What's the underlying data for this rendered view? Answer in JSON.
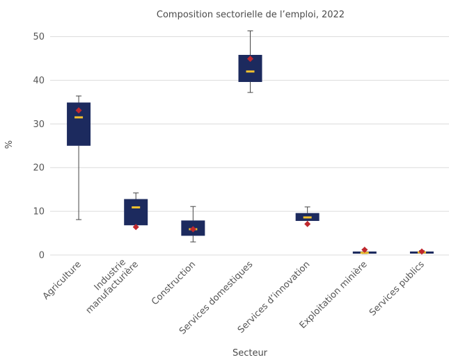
{
  "chart_data": {
    "type": "box",
    "title": "Composition sectorielle de l’emploi, 2022",
    "xlabel": "Secteur",
    "ylabel": "%",
    "ylim": [
      0,
      52
    ],
    "yticks": [
      0,
      10,
      20,
      30,
      40,
      50
    ],
    "grid": true,
    "colors": {
      "box": "#1c2a5e",
      "median": "#f2c12e",
      "mean": "#c0282d",
      "whisker": "#444444",
      "grid": "#dcdcdc"
    },
    "categories": [
      {
        "label": [
          "Agriculture"
        ],
        "min": 8.1,
        "q1": 25.0,
        "median": 31.5,
        "q3": 34.9,
        "max": 36.4,
        "mean": 33.1
      },
      {
        "label": [
          "Industrie",
          "manufacturière"
        ],
        "min": 6.4,
        "q1": 6.8,
        "median": 10.9,
        "q3": 12.8,
        "max": 14.2,
        "mean": 6.4
      },
      {
        "label": [
          "Construction"
        ],
        "min": 3.0,
        "q1": 4.4,
        "median": 5.9,
        "q3": 7.9,
        "max": 11.1,
        "mean": 5.9
      },
      {
        "label": [
          "Services domestiques"
        ],
        "min": 37.2,
        "q1": 39.6,
        "median": 42.0,
        "q3": 45.8,
        "max": 51.3,
        "mean": 44.9
      },
      {
        "label": [
          "Services d’innovation"
        ],
        "min": 7.1,
        "q1": 7.8,
        "median": 8.6,
        "q3": 9.6,
        "max": 11.0,
        "mean": 7.1
      },
      {
        "label": [
          "Exploitation minière"
        ],
        "min": 0.3,
        "q1": 0.3,
        "median": 0.5,
        "q3": 0.8,
        "max": 1.3,
        "mean": 1.2
      },
      {
        "label": [
          "Services publics"
        ],
        "min": 0.5,
        "q1": 0.5,
        "median": 0.6,
        "q3": 0.8,
        "max": 1.0,
        "mean": 0.8
      }
    ]
  }
}
